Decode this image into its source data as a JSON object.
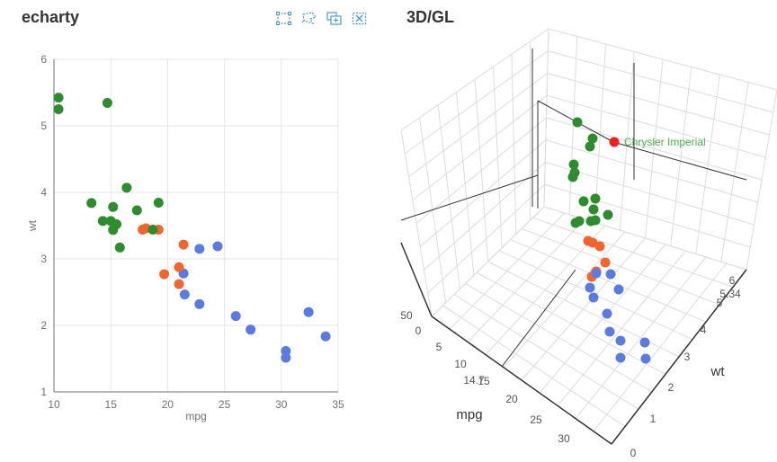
{
  "titles": {
    "left": "echarty",
    "right": "3D/GL"
  },
  "toolbox": [
    {
      "name": "box-select-icon",
      "color": "#4a9bc9"
    },
    {
      "name": "lasso-select-icon",
      "color": "#4a9bc9"
    },
    {
      "name": "keep-selection-icon",
      "color": "#4a9bc9"
    },
    {
      "name": "clear-selection-icon",
      "color": "#4a9bc9"
    }
  ],
  "colors": {
    "cyl4": "#5b7be0",
    "cyl6": "#f26430",
    "cyl8": "#2e8b2e",
    "highlight": "#ee2222",
    "label": "#4caf50",
    "grid": "#e6e6e6",
    "axis": "#6e7079"
  },
  "chart_data": [
    {
      "type": "scatter",
      "title": "echarty",
      "xlabel": "mpg",
      "ylabel": "wt",
      "xlim": [
        10,
        35
      ],
      "ylim": [
        1,
        6
      ],
      "xticks": [
        "10",
        "15",
        "20",
        "25",
        "30",
        "35"
      ],
      "yticks": [
        "1",
        "2",
        "3",
        "4",
        "5",
        "6"
      ],
      "grid": true,
      "series": [
        {
          "color": "#5b7be0",
          "points": [
            [
              22.8,
              2.32
            ],
            [
              24.4,
              3.19
            ],
            [
              22.8,
              3.15
            ],
            [
              32.4,
              2.2
            ],
            [
              30.4,
              1.615
            ],
            [
              33.9,
              1.835
            ],
            [
              21.5,
              2.465
            ],
            [
              27.3,
              1.935
            ],
            [
              26.0,
              2.14
            ],
            [
              30.4,
              1.513
            ],
            [
              21.4,
              2.78
            ]
          ]
        },
        {
          "color": "#f26430",
          "points": [
            [
              21.0,
              2.62
            ],
            [
              21.0,
              2.875
            ],
            [
              21.4,
              3.215
            ],
            [
              18.1,
              3.46
            ],
            [
              19.2,
              3.44
            ],
            [
              17.8,
              3.44
            ],
            [
              19.7,
              2.77
            ]
          ]
        },
        {
          "color": "#2e8b2e",
          "points": [
            [
              18.7,
              3.44
            ],
            [
              14.3,
              3.57
            ],
            [
              16.4,
              4.07
            ],
            [
              17.3,
              3.73
            ],
            [
              15.2,
              3.78
            ],
            [
              10.4,
              5.25
            ],
            [
              10.4,
              5.424
            ],
            [
              14.7,
              5.345
            ],
            [
              15.5,
              3.52
            ],
            [
              15.2,
              3.435
            ],
            [
              13.3,
              3.84
            ],
            [
              19.2,
              3.845
            ],
            [
              15.8,
              3.17
            ],
            [
              15.0,
              3.57
            ]
          ]
        }
      ]
    },
    {
      "type": "scatter",
      "title": "3D/GL",
      "xlabel": "mpg",
      "ylabel": "wt",
      "x_ticks": [
        "5",
        "10",
        "14.7",
        "15",
        "20",
        "25",
        "30"
      ],
      "y_ticks": [
        "0",
        "1",
        "2",
        "3",
        "4",
        "5",
        "5.34",
        "6"
      ],
      "z_ticks": [
        "0",
        "50"
      ],
      "annotation": "Chrysler Imperial",
      "highlight_point": {
        "mpg": 14.7,
        "wt": 5.345,
        "color": "#ee2222"
      },
      "grid": true
    }
  ]
}
